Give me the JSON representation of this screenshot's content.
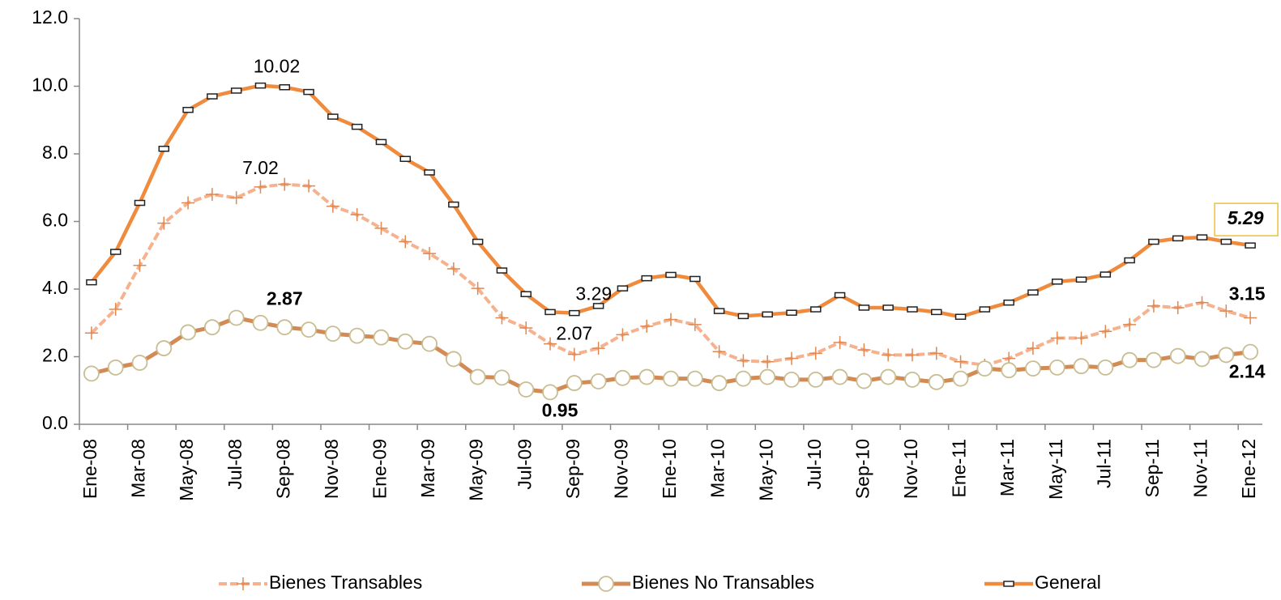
{
  "chart_data": {
    "type": "line",
    "categories": [
      "Ene-08",
      null,
      "Mar-08",
      null,
      "May-08",
      null,
      "Jul-08",
      null,
      "Sep-08",
      null,
      "Nov-08",
      null,
      "Ene-09",
      null,
      "Mar-09",
      null,
      "May-09",
      null,
      "Jul-09",
      null,
      "Sep-09",
      null,
      "Nov-09",
      null,
      "Ene-10",
      null,
      "Mar-10",
      null,
      "May-10",
      null,
      "Jul-10",
      null,
      "Sep-10",
      null,
      "Nov-10",
      null,
      "Ene-11",
      null,
      "Mar-11",
      null,
      "May-11",
      null,
      "Jul-11",
      null,
      "Sep-11",
      null,
      "Nov-11",
      null,
      "Ene-12"
    ],
    "series": [
      {
        "name": "Bienes Transables",
        "color": "#f6b28e",
        "label_color": "#e0905c",
        "values": [
          2.7,
          3.4,
          4.7,
          5.95,
          6.55,
          6.8,
          6.7,
          7.02,
          7.1,
          7.05,
          6.45,
          6.2,
          5.8,
          5.4,
          5.05,
          4.6,
          4.02,
          3.15,
          2.85,
          2.38,
          2.07,
          2.25,
          2.65,
          2.9,
          3.1,
          2.95,
          2.15,
          1.88,
          1.85,
          1.95,
          2.1,
          2.42,
          2.2,
          2.05,
          2.05,
          2.1,
          1.85,
          1.75,
          1.95,
          2.25,
          2.55,
          2.55,
          2.75,
          2.95,
          3.5,
          3.45,
          3.6,
          3.35,
          3.15
        ],
        "value_labels": [
          null,
          null,
          null,
          null,
          null,
          null,
          null,
          "7.02",
          null,
          null,
          null,
          null,
          null,
          null,
          null,
          null,
          null,
          null,
          null,
          null,
          "2.07",
          null,
          null,
          null,
          null,
          null,
          null,
          null,
          null,
          null,
          null,
          null,
          null,
          null,
          null,
          null,
          null,
          null,
          null,
          null,
          null,
          null,
          null,
          null,
          null,
          null,
          null,
          null,
          "3.15"
        ]
      },
      {
        "name": "Bienes No Transables",
        "color": "#d38b55",
        "label_color": "#c9bd92",
        "values": [
          1.5,
          1.68,
          1.82,
          2.25,
          2.72,
          2.87,
          3.15,
          3.0,
          2.87,
          2.8,
          2.68,
          2.62,
          2.57,
          2.45,
          2.38,
          1.93,
          1.4,
          1.38,
          1.03,
          0.95,
          1.22,
          1.27,
          1.37,
          1.4,
          1.35,
          1.35,
          1.22,
          1.35,
          1.4,
          1.32,
          1.32,
          1.4,
          1.28,
          1.4,
          1.32,
          1.25,
          1.35,
          1.65,
          1.6,
          1.65,
          1.68,
          1.72,
          1.68,
          1.9,
          1.9,
          2.02,
          1.93,
          2.05,
          2.14
        ],
        "value_labels": [
          null,
          null,
          null,
          null,
          null,
          null,
          null,
          null,
          "2.87",
          null,
          null,
          null,
          null,
          null,
          null,
          null,
          null,
          null,
          null,
          "0.95",
          null,
          null,
          null,
          null,
          null,
          null,
          null,
          null,
          null,
          null,
          null,
          null,
          null,
          null,
          null,
          null,
          null,
          null,
          null,
          null,
          null,
          null,
          null,
          null,
          null,
          null,
          null,
          null,
          "2.14"
        ]
      },
      {
        "name": "General",
        "color": "#f08a3c",
        "label_color": "#000000",
        "values": [
          4.2,
          5.1,
          6.55,
          8.15,
          9.3,
          9.7,
          9.87,
          10.02,
          9.97,
          9.83,
          9.1,
          8.8,
          8.35,
          7.85,
          7.45,
          6.5,
          5.4,
          4.55,
          3.85,
          3.32,
          3.29,
          3.5,
          4.02,
          4.32,
          4.42,
          4.3,
          3.35,
          3.2,
          3.25,
          3.3,
          3.4,
          3.82,
          3.45,
          3.45,
          3.4,
          3.32,
          3.18,
          3.4,
          3.6,
          3.9,
          4.22,
          4.28,
          4.43,
          4.85,
          5.4,
          5.5,
          5.53,
          5.4,
          5.29
        ],
        "value_labels": [
          null,
          null,
          null,
          null,
          null,
          null,
          null,
          "10.02",
          null,
          null,
          null,
          null,
          null,
          null,
          null,
          null,
          null,
          null,
          null,
          null,
          "3.29",
          null,
          null,
          null,
          null,
          null,
          null,
          null,
          null,
          null,
          null,
          null,
          null,
          null,
          null,
          null,
          null,
          null,
          null,
          null,
          null,
          null,
          null,
          null,
          null,
          null,
          null,
          null,
          "5.29"
        ]
      }
    ],
    "ylim": [
      0,
      12
    ],
    "yticks": [
      {
        "value": 0,
        "label": "0.0"
      },
      {
        "value": 2,
        "label": "2.0"
      },
      {
        "value": 4,
        "label": "4.0"
      },
      {
        "value": 6,
        "label": "6.0"
      },
      {
        "value": 8,
        "label": "8.0"
      },
      {
        "value": 10,
        "label": "10.0"
      },
      {
        "value": 12,
        "label": "12.0"
      }
    ],
    "legend": "bottom"
  }
}
